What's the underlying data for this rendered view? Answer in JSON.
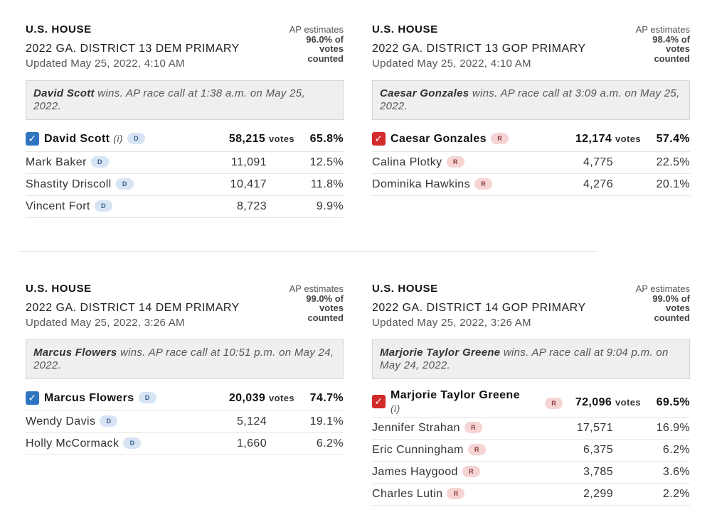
{
  "races": [
    {
      "office": "U.S. HOUSE",
      "title": "2022 GA. DISTRICT 13 DEM PRIMARY",
      "updated": "Updated May 25, 2022, 4:10 AM",
      "estimate_pre": "AP estimates",
      "estimate_value": "96.0% of votes",
      "estimate_post": "counted",
      "call_winner": "David Scott",
      "call_text": " wins. AP race call at 1:38 a.m. on May 25, 2022.",
      "winner": {
        "name": "David Scott",
        "incumbent": "(i)",
        "party": "D",
        "votes": "58,215",
        "votes_label": "votes",
        "pct": "65.8%"
      },
      "others": [
        {
          "name": "Mark Baker",
          "party": "D",
          "votes": "11,091",
          "pct": "12.5%"
        },
        {
          "name": "Shastity Driscoll",
          "party": "D",
          "votes": "10,417",
          "pct": "11.8%"
        },
        {
          "name": "Vincent Fort",
          "party": "D",
          "votes": "8,723",
          "pct": "9.9%"
        }
      ]
    },
    {
      "office": "U.S. HOUSE",
      "title": "2022 GA. DISTRICT 13 GOP PRIMARY",
      "updated": "Updated May 25, 2022, 4:10 AM",
      "estimate_pre": "AP estimates",
      "estimate_value": "98.4% of votes",
      "estimate_post": "counted",
      "call_winner": "Caesar Gonzales",
      "call_text": " wins. AP race call at 3:09 a.m. on May 25, 2022.",
      "winner": {
        "name": "Caesar Gonzales",
        "incumbent": "",
        "party": "R",
        "votes": "12,174",
        "votes_label": "votes",
        "pct": "57.4%"
      },
      "others": [
        {
          "name": "Calina Plotky",
          "party": "R",
          "votes": "4,775",
          "pct": "22.5%"
        },
        {
          "name": "Dominika Hawkins",
          "party": "R",
          "votes": "4,276",
          "pct": "20.1%"
        }
      ]
    },
    {
      "office": "U.S. HOUSE",
      "title": "2022 GA. DISTRICT 14 DEM PRIMARY",
      "updated": "Updated May 25, 2022, 3:26 AM",
      "estimate_pre": "AP estimates",
      "estimate_value": "99.0% of votes",
      "estimate_post": "counted",
      "call_winner": "Marcus Flowers",
      "call_text": " wins. AP race call at 10:51 p.m. on May 24, 2022.",
      "winner": {
        "name": "Marcus Flowers",
        "incumbent": "",
        "party": "D",
        "votes": "20,039",
        "votes_label": "votes",
        "pct": "74.7%"
      },
      "others": [
        {
          "name": "Wendy Davis",
          "party": "D",
          "votes": "5,124",
          "pct": "19.1%"
        },
        {
          "name": "Holly McCormack",
          "party": "D",
          "votes": "1,660",
          "pct": "6.2%"
        }
      ]
    },
    {
      "office": "U.S. HOUSE",
      "title": "2022 GA. DISTRICT 14 GOP PRIMARY",
      "updated": "Updated May 25, 2022, 3:26 AM",
      "estimate_pre": "AP estimates",
      "estimate_value": "99.0% of votes",
      "estimate_post": "counted",
      "call_winner": "Marjorie Taylor Greene",
      "call_text": " wins. AP race call at 9:04 p.m. on May 24, 2022.",
      "winner": {
        "name": "Marjorie Taylor Greene",
        "incumbent": "(i)",
        "party": "R",
        "votes": "72,096",
        "votes_label": "votes",
        "pct": "69.5%"
      },
      "others": [
        {
          "name": "Jennifer Strahan",
          "party": "R",
          "votes": "17,571",
          "pct": "16.9%"
        },
        {
          "name": "Eric Cunningham",
          "party": "R",
          "votes": "6,375",
          "pct": "6.2%"
        },
        {
          "name": "James Haygood",
          "party": "R",
          "votes": "3,785",
          "pct": "3.6%"
        },
        {
          "name": "Charles Lutin",
          "party": "R",
          "votes": "2,299",
          "pct": "2.2%"
        }
      ]
    }
  ],
  "colors": {
    "dem_check": "#2f74c0",
    "gop_check": "#d22b2b",
    "dem_badge": "#d6e4f4",
    "gop_badge": "#f6d4d4"
  },
  "icons": {
    "winner_check": "checkmark-icon"
  }
}
